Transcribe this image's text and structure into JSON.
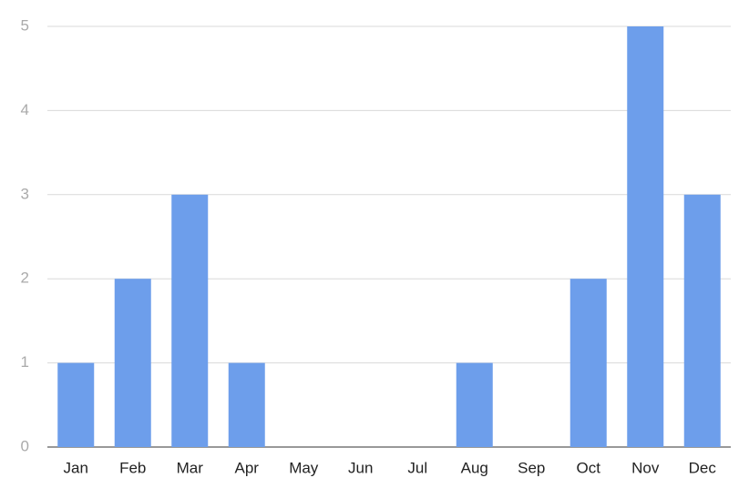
{
  "chart_data": {
    "type": "bar",
    "categories": [
      "Jan",
      "Feb",
      "Mar",
      "Apr",
      "May",
      "Jun",
      "Jul",
      "Aug",
      "Sep",
      "Oct",
      "Nov",
      "Dec"
    ],
    "values": [
      1,
      2,
      3,
      1,
      0,
      0,
      0,
      1,
      0,
      2,
      5,
      3
    ],
    "color": "#6d9eeb",
    "ylim": [
      0,
      5
    ],
    "yticks": [
      0,
      1,
      2,
      3,
      4,
      5
    ],
    "grid": true
  }
}
